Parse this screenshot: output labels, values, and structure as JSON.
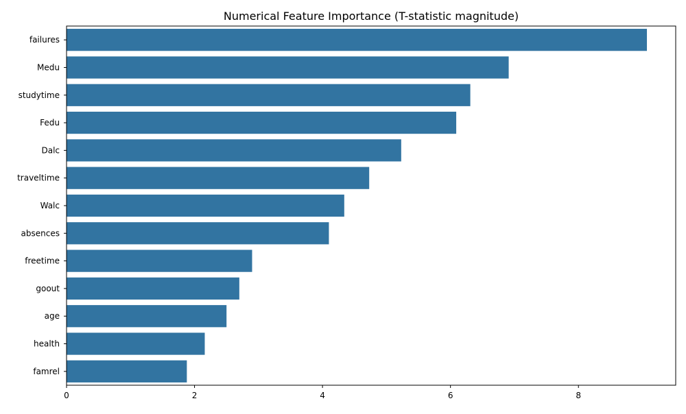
{
  "chart_data": {
    "type": "bar",
    "orientation": "horizontal",
    "title": "Numerical Feature Importance (T-statistic magnitude)",
    "xlabel": "",
    "ylabel": "",
    "categories": [
      "failures",
      "Medu",
      "studytime",
      "Fedu",
      "Dalc",
      "traveltime",
      "Walc",
      "absences",
      "freetime",
      "goout",
      "age",
      "health",
      "famrel"
    ],
    "values": [
      9.07,
      6.91,
      6.31,
      6.09,
      5.23,
      4.73,
      4.34,
      4.1,
      2.9,
      2.7,
      2.5,
      2.16,
      1.88
    ],
    "xlim": [
      0,
      9.52
    ],
    "xticks": [
      0,
      2,
      4,
      6,
      8
    ],
    "grid": false,
    "legend": "none",
    "bar_color": "#3274a1"
  }
}
